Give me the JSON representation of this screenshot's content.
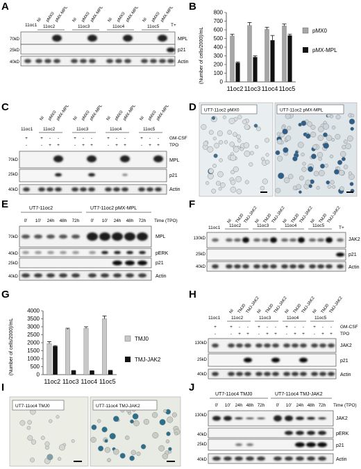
{
  "panels": {
    "A": {
      "letter": "A",
      "group_labels": [
        "11oc2",
        "11oc3",
        "11oc4",
        "11oc5"
      ],
      "lane_labels": [
        "11oc1",
        "NI",
        "pMX0",
        "pMX-MPL",
        "NI",
        "pMX0",
        "pMX-MPL",
        "NI",
        "pMX0",
        "pMX-MPL",
        "NI",
        "pMX0",
        "pMX-MPL",
        "T+"
      ],
      "mw": [
        "70kD",
        "25kD",
        "40kD"
      ],
      "blots": [
        "MPL",
        "p21",
        "Actin"
      ]
    },
    "B": {
      "letter": "B",
      "ylabel": "(Number of cells/2000)/mL",
      "legend": [
        "pMX0",
        "pMX-MPL"
      ]
    },
    "C": {
      "letter": "C",
      "lane_labels": [
        "NI",
        "pMX0",
        "pMX-MPL",
        "NI",
        "pMX0",
        "pMX-MPL",
        "NI",
        "pMX0",
        "pMX-MPL",
        "NI",
        "pMX0",
        "pMX-MPL"
      ],
      "group_labels": [
        "11oc1",
        "11oc2",
        "11oc3",
        "11oc4",
        "11oc5"
      ],
      "gmcsf_label": "GM-CSF",
      "tpo_label": "TPO",
      "gmcsf": [
        "+",
        "+",
        "-",
        "-",
        "+",
        "-",
        "-",
        "+",
        "-",
        "-",
        "+",
        "-",
        "-"
      ],
      "tpo": [
        "-",
        "-",
        "+",
        "+",
        "-",
        "+",
        "+",
        "-",
        "+",
        "+",
        "-",
        "+",
        "+"
      ],
      "mw": [
        "70kD",
        "25kD",
        "40kD"
      ],
      "blots": [
        "MPL",
        "p21",
        "Actin"
      ]
    },
    "D": {
      "letter": "D",
      "images": [
        "UT7-11oc2 pMX0",
        "UT7-11oc2 pMX-MPL"
      ]
    },
    "E": {
      "letter": "E",
      "groups": [
        "UT7-11oc2",
        "UT7-11oc2 pMX-MPL"
      ],
      "times": [
        "0'",
        "10'",
        "24h",
        "48h",
        "72h",
        "0'",
        "10'",
        "24h",
        "48h",
        "72h"
      ],
      "time_label": "Time (TPO)",
      "mw": [
        "70kD",
        "40kD",
        "25kD",
        "40kD"
      ],
      "blots": [
        "MPL",
        "pERK",
        "p21",
        "Actin"
      ]
    },
    "F": {
      "letter": "F",
      "lane_labels": [
        "NI",
        "TMJ0",
        "TMJ-JAK2",
        "NI",
        "TMJ0",
        "TMJ-JAK2",
        "NI",
        "TMJ0",
        "TMJ-JAK2",
        "NI",
        "TMJ0",
        "TMJ-JAK2"
      ],
      "group_labels": [
        "11oc1",
        "11oc2",
        "11oc3",
        "11oc4",
        "11oc5",
        "T+"
      ],
      "mw": [
        "130kD",
        "25kD",
        "40kD"
      ],
      "blots": [
        "JAK2",
        "p21",
        "Actin"
      ]
    },
    "G": {
      "letter": "G",
      "ylabel": "(Number of cells/2000)/mL",
      "legend": [
        "TMJ0",
        "TMJ-JAK2"
      ]
    },
    "H": {
      "letter": "H",
      "lane_labels": [
        "NI",
        "TMJ0",
        "TMJ-JAK2",
        "NI",
        "TMJ0",
        "TMJ-JAK2",
        "NI",
        "TMJ0",
        "TMJ-JAK2",
        "NI",
        "TMJ0",
        "TMJ-JAK2"
      ],
      "group_labels": [
        "11oc1",
        "11oc2",
        "11oc3",
        "11oc4",
        "11oc5"
      ],
      "gmcsf_label": "GM-CSF",
      "tpo_label": "TPO",
      "gmcsf": [
        "+",
        "+",
        "-",
        "-",
        "+",
        "-",
        "-",
        "+",
        "-",
        "-",
        "+",
        "-",
        "-"
      ],
      "tpo": [
        "-",
        "-",
        "+",
        "+",
        "-",
        "+",
        "+",
        "-",
        "+",
        "+",
        "-",
        "+",
        "+"
      ],
      "mw": [
        "130kD",
        "25kD",
        "40kD"
      ],
      "blots": [
        "JAK2",
        "p21",
        "Actin"
      ]
    },
    "I": {
      "letter": "I",
      "images": [
        "UT7-11oc4 TMJ0",
        "UT7-11oc4 TMJ-JAK2"
      ]
    },
    "J": {
      "letter": "J",
      "groups": [
        "UT7-11oc4 TMJ0",
        "UT7-11oc4 TMJ-JAK2"
      ],
      "times": [
        "0'",
        "10'",
        "24h",
        "48h",
        "72h",
        "0'",
        "10'",
        "24h",
        "48h",
        "72h"
      ],
      "time_label": "Time (TPO)",
      "mw": [
        "130kD",
        "40kD",
        "25kD",
        "40kD"
      ],
      "blots": [
        "JAK2",
        "pERK",
        "p21",
        "Actin"
      ]
    }
  },
  "chart_data": [
    {
      "panel": "B",
      "type": "bar",
      "categories": [
        "11oc2",
        "11oc3",
        "11oc4",
        "11oc5"
      ],
      "series": [
        {
          "name": "pMX0",
          "values": [
            530,
            650,
            605,
            645
          ],
          "errors": [
            20,
            35,
            25,
            22
          ],
          "color": "#a6a6a6"
        },
        {
          "name": "pMX-MPL",
          "values": [
            220,
            285,
            480,
            535
          ],
          "errors": [
            10,
            15,
            55,
            15
          ],
          "color": "#111111"
        }
      ],
      "title": "",
      "xlabel": "",
      "ylabel": "(Number of cells/2000)/mL",
      "ylim": [
        0,
        800
      ],
      "yticks": [
        0,
        100,
        200,
        300,
        400,
        500,
        600,
        700,
        800
      ],
      "legend_position": "right"
    },
    {
      "panel": "G",
      "type": "bar",
      "categories": [
        "11oc2",
        "11oc3",
        "11oc4",
        "11oc5"
      ],
      "series": [
        {
          "name": "TMJ0",
          "values": [
            1950,
            2850,
            2900,
            3500
          ],
          "errors": [
            120,
            60,
            100,
            180
          ],
          "color": "#c8c8c8"
        },
        {
          "name": "TMJ-JAK2",
          "values": [
            1780,
            250,
            240,
            260
          ],
          "errors": [
            40,
            10,
            10,
            10
          ],
          "color": "#111111"
        }
      ],
      "title": "",
      "xlabel": "",
      "ylabel": "(Number of cells/2000)/mL",
      "ylim": [
        0,
        4000
      ],
      "yticks": [
        0,
        500,
        1000,
        1500,
        2000,
        2500,
        3000,
        3500,
        4000
      ],
      "legend_position": "right"
    }
  ]
}
